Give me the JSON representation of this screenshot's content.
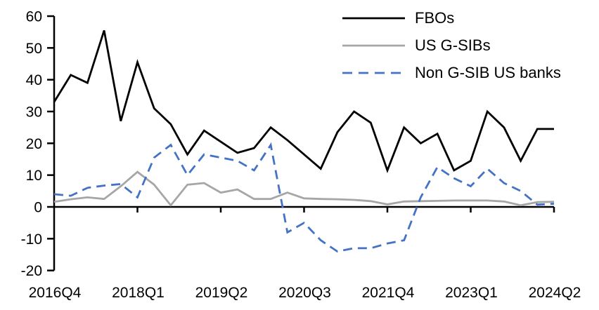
{
  "chart_data": {
    "type": "line",
    "title": "",
    "categories": [
      "2016Q4",
      "2017Q1",
      "2017Q2",
      "2017Q3",
      "2017Q4",
      "2018Q1",
      "2018Q2",
      "2018Q3",
      "2018Q4",
      "2019Q1",
      "2019Q2",
      "2019Q3",
      "2019Q4",
      "2020Q1",
      "2020Q2",
      "2020Q3",
      "2020Q4",
      "2021Q1",
      "2021Q2",
      "2021Q3",
      "2021Q4",
      "2022Q1",
      "2022Q2",
      "2022Q3",
      "2022Q4",
      "2023Q1",
      "2023Q2",
      "2023Q3",
      "2023Q4",
      "2024Q1",
      "2024Q2"
    ],
    "x_tick_labels": [
      "2016Q4",
      "2018Q1",
      "2019Q2",
      "2020Q3",
      "2021Q4",
      "2023Q1",
      "2024Q2"
    ],
    "x_tick_indices": [
      0,
      5,
      10,
      15,
      20,
      25,
      30
    ],
    "y_ticks": [
      60,
      50,
      40,
      30,
      20,
      10,
      0,
      -10,
      -20
    ],
    "ylim": [
      -20,
      60
    ],
    "grid": false,
    "legend_position": "top-right",
    "axis_color": "#000000",
    "series": [
      {
        "name": "FBOs",
        "color": "#000000",
        "style": "solid",
        "values": [
          33,
          41.5,
          39,
          55.5,
          27,
          45.5,
          31,
          26,
          16.5,
          24,
          20.5,
          17,
          18.5,
          25,
          21,
          16.5,
          12,
          23.5,
          30,
          26.5,
          11.5,
          25,
          20,
          23,
          11.5,
          14.5,
          30,
          25,
          14.5,
          24.5,
          24.5
        ]
      },
      {
        "name": "US G-SIBs",
        "color": "#a6a6a6",
        "style": "solid",
        "values": [
          1.6,
          2.4,
          3,
          2.5,
          6.5,
          11,
          7,
          0.5,
          7,
          7.5,
          4.5,
          5.5,
          2.5,
          2.5,
          4.5,
          2.7,
          2.5,
          2.4,
          2.2,
          1.8,
          0.8,
          1.7,
          1.8,
          1.9,
          2,
          2,
          2,
          1.7,
          0.5,
          1.5,
          1.6
        ]
      },
      {
        "name": "Non G-SIB US banks",
        "color": "#4472c4",
        "style": "dashed",
        "values": [
          4,
          3.5,
          6,
          6.7,
          7.2,
          3,
          15.5,
          19.5,
          10,
          16.5,
          15.5,
          14.5,
          11.5,
          19.5,
          -8,
          -5,
          -10.5,
          -14,
          -13,
          -13,
          -11.5,
          -10.5,
          3,
          12.5,
          9,
          6.5,
          12,
          7.5,
          5,
          0.7,
          1
        ]
      }
    ]
  }
}
